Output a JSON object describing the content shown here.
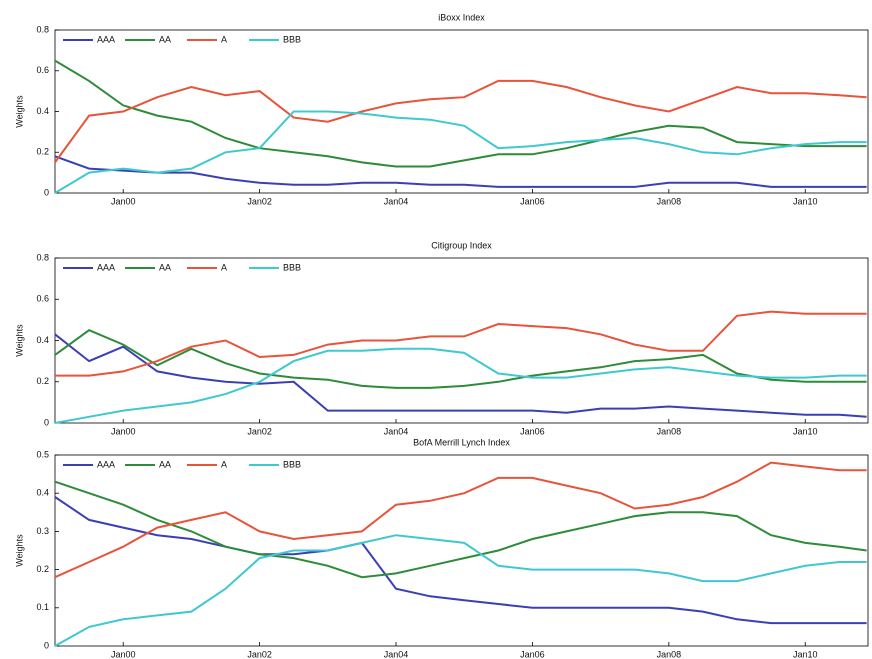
{
  "chart_data": [
    {
      "type": "line",
      "title": "iBoxx Index",
      "ylabel": "Weights",
      "x": [
        1999,
        1999.5,
        2000,
        2000.5,
        2001,
        2001.5,
        2002,
        2002.5,
        2003,
        2003.5,
        2004,
        2004.5,
        2005,
        2005.5,
        2006,
        2006.5,
        2007,
        2007.5,
        2008,
        2008.5,
        2009,
        2009.5,
        2010,
        2010.5,
        2010.9
      ],
      "series": [
        {
          "name": "AAA",
          "color": "#3b3fb5",
          "values": [
            0.18,
            0.12,
            0.11,
            0.1,
            0.1,
            0.07,
            0.05,
            0.04,
            0.04,
            0.05,
            0.05,
            0.04,
            0.04,
            0.03,
            0.03,
            0.03,
            0.03,
            0.03,
            0.05,
            0.05,
            0.05,
            0.03,
            0.03,
            0.03,
            0.03
          ]
        },
        {
          "name": "AA",
          "color": "#2e8b3a",
          "values": [
            0.65,
            0.55,
            0.43,
            0.38,
            0.35,
            0.27,
            0.22,
            0.2,
            0.18,
            0.15,
            0.13,
            0.13,
            0.16,
            0.19,
            0.19,
            0.22,
            0.26,
            0.3,
            0.33,
            0.32,
            0.25,
            0.24,
            0.23,
            0.23,
            0.23
          ]
        },
        {
          "name": "A",
          "color": "#e8533a",
          "values": [
            0.15,
            0.38,
            0.4,
            0.47,
            0.52,
            0.48,
            0.5,
            0.37,
            0.35,
            0.4,
            0.44,
            0.46,
            0.47,
            0.55,
            0.55,
            0.52,
            0.47,
            0.43,
            0.4,
            0.46,
            0.52,
            0.49,
            0.49,
            0.48,
            0.47
          ]
        },
        {
          "name": "BBB",
          "color": "#3ec8d0",
          "values": [
            0,
            0.1,
            0.12,
            0.1,
            0.12,
            0.2,
            0.22,
            0.4,
            0.4,
            0.39,
            0.37,
            0.36,
            0.33,
            0.22,
            0.23,
            0.25,
            0.26,
            0.27,
            0.24,
            0.2,
            0.19,
            0.22,
            0.24,
            0.25,
            0.25
          ]
        }
      ],
      "xlim": [
        1999,
        2010.92
      ],
      "ylim": [
        0,
        0.8
      ],
      "xticks": [
        {
          "value": 2000,
          "label": "Jan00"
        },
        {
          "value": 2002,
          "label": "Jan02"
        },
        {
          "value": 2004,
          "label": "Jan04"
        },
        {
          "value": 2006,
          "label": "Jan06"
        },
        {
          "value": 2008,
          "label": "Jan08"
        },
        {
          "value": 2010,
          "label": "Jan10"
        }
      ],
      "yticks": [
        0,
        0.2,
        0.4,
        0.6,
        0.8
      ]
    },
    {
      "type": "line",
      "title": "Citigroup Index",
      "ylabel": "Weights",
      "x": [
        1999,
        1999.5,
        2000,
        2000.5,
        2001,
        2001.5,
        2002,
        2002.5,
        2003,
        2003.5,
        2004,
        2004.5,
        2005,
        2005.5,
        2006,
        2006.5,
        2007,
        2007.5,
        2008,
        2008.5,
        2009,
        2009.5,
        2010,
        2010.5,
        2010.9
      ],
      "series": [
        {
          "name": "AAA",
          "color": "#3b3fb5",
          "values": [
            0.43,
            0.3,
            0.37,
            0.25,
            0.22,
            0.2,
            0.19,
            0.2,
            0.06,
            0.06,
            0.06,
            0.06,
            0.06,
            0.06,
            0.06,
            0.05,
            0.07,
            0.07,
            0.08,
            0.07,
            0.06,
            0.05,
            0.04,
            0.04,
            0.03
          ]
        },
        {
          "name": "AA",
          "color": "#2e8b3a",
          "values": [
            0.33,
            0.45,
            0.38,
            0.28,
            0.36,
            0.29,
            0.24,
            0.22,
            0.21,
            0.18,
            0.17,
            0.17,
            0.18,
            0.2,
            0.23,
            0.25,
            0.27,
            0.3,
            0.31,
            0.33,
            0.24,
            0.21,
            0.2,
            0.2,
            0.2
          ]
        },
        {
          "name": "A",
          "color": "#e8533a",
          "values": [
            0.23,
            0.23,
            0.25,
            0.3,
            0.37,
            0.4,
            0.32,
            0.33,
            0.38,
            0.4,
            0.4,
            0.42,
            0.42,
            0.48,
            0.47,
            0.46,
            0.43,
            0.38,
            0.35,
            0.35,
            0.52,
            0.54,
            0.53,
            0.53,
            0.53
          ]
        },
        {
          "name": "BBB",
          "color": "#3ec8d0",
          "values": [
            0,
            0.03,
            0.06,
            0.08,
            0.1,
            0.14,
            0.2,
            0.3,
            0.35,
            0.35,
            0.36,
            0.36,
            0.34,
            0.24,
            0.22,
            0.22,
            0.24,
            0.26,
            0.27,
            0.25,
            0.23,
            0.22,
            0.22,
            0.23,
            0.23
          ]
        }
      ],
      "xlim": [
        1999,
        2010.92
      ],
      "ylim": [
        0,
        0.8
      ],
      "xticks": [
        {
          "value": 2000,
          "label": "Jan00"
        },
        {
          "value": 2002,
          "label": "Jan02"
        },
        {
          "value": 2004,
          "label": "Jan04"
        },
        {
          "value": 2006,
          "label": "Jan06"
        },
        {
          "value": 2008,
          "label": "Jan08"
        },
        {
          "value": 2010,
          "label": "Jan10"
        }
      ],
      "yticks": [
        0,
        0.2,
        0.4,
        0.6,
        0.8
      ]
    },
    {
      "type": "line",
      "title": "BofA Merrill Lynch Index",
      "ylabel": "Weights",
      "x": [
        1999,
        1999.5,
        2000,
        2000.5,
        2001,
        2001.5,
        2002,
        2002.5,
        2003,
        2003.5,
        2004,
        2004.5,
        2005,
        2005.5,
        2006,
        2006.5,
        2007,
        2007.5,
        2008,
        2008.5,
        2009,
        2009.5,
        2010,
        2010.5,
        2010.9
      ],
      "series": [
        {
          "name": "AAA",
          "color": "#3b3fb5",
          "values": [
            0.39,
            0.33,
            0.31,
            0.29,
            0.28,
            0.26,
            0.24,
            0.24,
            0.25,
            0.27,
            0.15,
            0.13,
            0.12,
            0.11,
            0.1,
            0.1,
            0.1,
            0.1,
            0.1,
            0.09,
            0.07,
            0.06,
            0.06,
            0.06,
            0.06
          ]
        },
        {
          "name": "AA",
          "color": "#2e8b3a",
          "values": [
            0.43,
            0.4,
            0.37,
            0.33,
            0.3,
            0.26,
            0.24,
            0.23,
            0.21,
            0.18,
            0.19,
            0.21,
            0.23,
            0.25,
            0.28,
            0.3,
            0.32,
            0.34,
            0.35,
            0.35,
            0.34,
            0.29,
            0.27,
            0.26,
            0.25
          ]
        },
        {
          "name": "A",
          "color": "#e8533a",
          "values": [
            0.18,
            0.22,
            0.26,
            0.31,
            0.33,
            0.35,
            0.3,
            0.28,
            0.29,
            0.3,
            0.37,
            0.38,
            0.4,
            0.44,
            0.44,
            0.42,
            0.4,
            0.36,
            0.37,
            0.39,
            0.43,
            0.48,
            0.47,
            0.46,
            0.46
          ]
        },
        {
          "name": "BBB",
          "color": "#3ec8d0",
          "values": [
            0,
            0.05,
            0.07,
            0.08,
            0.09,
            0.15,
            0.23,
            0.25,
            0.25,
            0.27,
            0.29,
            0.28,
            0.27,
            0.21,
            0.2,
            0.2,
            0.2,
            0.2,
            0.19,
            0.17,
            0.17,
            0.19,
            0.21,
            0.22,
            0.22
          ]
        }
      ],
      "xlim": [
        1999,
        2010.92
      ],
      "ylim": [
        0,
        0.5
      ],
      "xticks": [
        {
          "value": 2000,
          "label": "Jan00"
        },
        {
          "value": 2002,
          "label": "Jan02"
        },
        {
          "value": 2004,
          "label": "Jan04"
        },
        {
          "value": 2006,
          "label": "Jan06"
        },
        {
          "value": 2008,
          "label": "Jan08"
        },
        {
          "value": 2010,
          "label": "Jan10"
        }
      ],
      "yticks": [
        0,
        0.1,
        0.2,
        0.3,
        0.4,
        0.5
      ]
    }
  ]
}
